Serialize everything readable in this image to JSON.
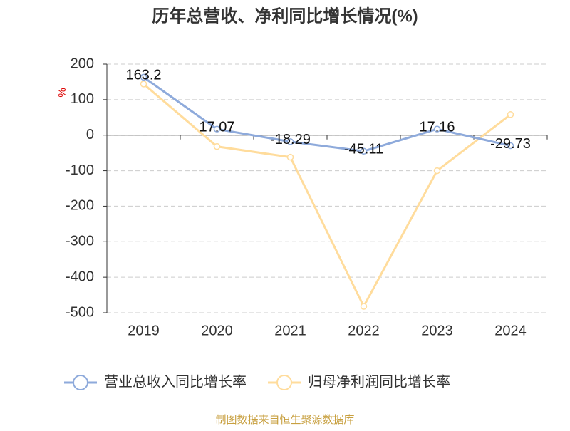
{
  "chart_data": {
    "type": "line",
    "title": "历年总营收、净利同比增长情况(%)",
    "y_label": "%",
    "categories": [
      "2019",
      "2020",
      "2021",
      "2022",
      "2023",
      "2024"
    ],
    "series": [
      {
        "name": "营业总收入同比增长率",
        "color": "#8eaadb",
        "values": [
          163.2,
          17.07,
          -18.29,
          -45.11,
          17.16,
          -29.73
        ],
        "show_labels": true
      },
      {
        "name": "归母净利润同比增长率",
        "color": "#ffdc9c",
        "values": [
          144,
          -32,
          -62,
          -482,
          -100,
          58
        ],
        "show_labels": false
      }
    ],
    "ylim": [
      -500,
      200
    ],
    "yticks": [
      -500,
      -400,
      -300,
      -200,
      -100,
      0,
      100,
      200
    ],
    "grid": true,
    "legend": "bottom",
    "source": "制图数据来自恒生聚源数据库"
  }
}
